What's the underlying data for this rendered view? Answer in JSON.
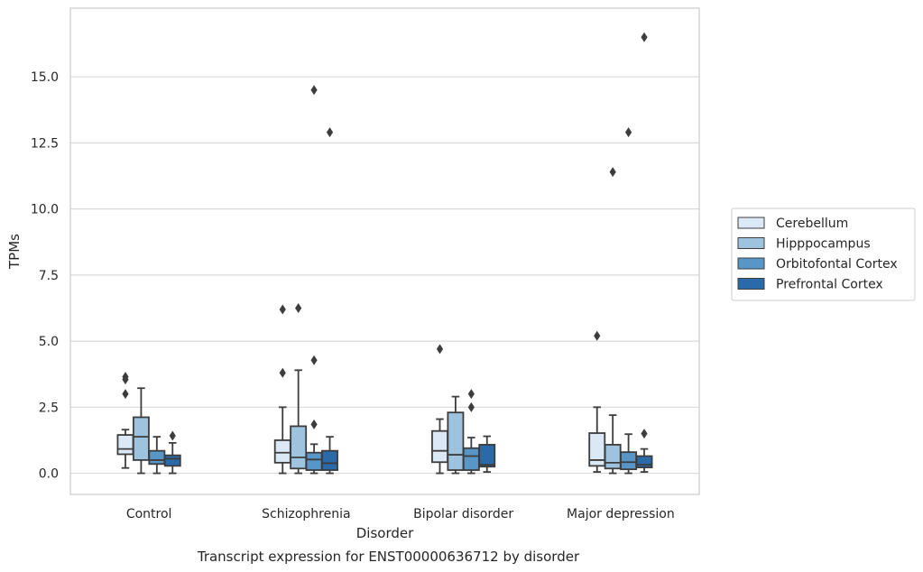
{
  "chart_data": {
    "type": "boxplot",
    "caption": "Transcript expression for ENST00000636712 by disorder",
    "xlabel": "Disorder",
    "ylabel": "TPMs",
    "ylim": [
      -0.8,
      17.6
    ],
    "yticks": [
      0.0,
      2.5,
      5.0,
      7.5,
      10.0,
      12.5,
      15.0
    ],
    "ytick_labels": [
      "0.0",
      "2.5",
      "5.0",
      "7.5",
      "10.0",
      "12.5",
      "15.0"
    ],
    "grid": "horizontal",
    "legend_position": "right",
    "categories": [
      "Control",
      "Schizophrenia",
      "Bipolar disorder",
      "Major depression"
    ],
    "series": [
      {
        "name": "Cerebellum",
        "color": "#dbe9f6",
        "boxes": [
          {
            "whislo": 0.2,
            "q1": 0.72,
            "med": 0.92,
            "q3": 1.45,
            "whishi": 1.65,
            "fliers": [
              3.0,
              3.55,
              3.65
            ]
          },
          {
            "whislo": 0.0,
            "q1": 0.4,
            "med": 0.78,
            "q3": 1.25,
            "whishi": 2.5,
            "fliers": [
              3.8,
              6.2
            ]
          },
          {
            "whislo": 0.0,
            "q1": 0.42,
            "med": 0.85,
            "q3": 1.6,
            "whishi": 2.05,
            "fliers": [
              4.7
            ]
          },
          {
            "whislo": 0.05,
            "q1": 0.28,
            "med": 0.5,
            "q3": 1.52,
            "whishi": 2.5,
            "fliers": [
              5.2
            ]
          }
        ]
      },
      {
        "name": "Hipppocampus",
        "color": "#9dc3de",
        "boxes": [
          {
            "whislo": 0.0,
            "q1": 0.5,
            "med": 1.38,
            "q3": 2.12,
            "whishi": 3.22,
            "fliers": []
          },
          {
            "whislo": 0.0,
            "q1": 0.18,
            "med": 0.6,
            "q3": 1.78,
            "whishi": 3.9,
            "fliers": [
              6.25
            ]
          },
          {
            "whislo": 0.0,
            "q1": 0.12,
            "med": 0.7,
            "q3": 2.3,
            "whishi": 2.9,
            "fliers": []
          },
          {
            "whislo": 0.0,
            "q1": 0.18,
            "med": 0.4,
            "q3": 1.08,
            "whishi": 2.2,
            "fliers": [
              11.4
            ]
          }
        ]
      },
      {
        "name": "Orbitofontal Cortex",
        "color": "#5796c6",
        "boxes": [
          {
            "whislo": 0.0,
            "q1": 0.35,
            "med": 0.5,
            "q3": 0.85,
            "whishi": 1.38,
            "fliers": []
          },
          {
            "whislo": 0.0,
            "q1": 0.12,
            "med": 0.52,
            "q3": 0.78,
            "whishi": 1.1,
            "fliers": [
              1.85,
              4.28,
              14.5
            ]
          },
          {
            "whislo": 0.0,
            "q1": 0.12,
            "med": 0.65,
            "q3": 0.95,
            "whishi": 1.35,
            "fliers": [
              2.5,
              3.0
            ]
          },
          {
            "whislo": 0.0,
            "q1": 0.15,
            "med": 0.42,
            "q3": 0.8,
            "whishi": 1.48,
            "fliers": [
              12.9
            ]
          }
        ]
      },
      {
        "name": "Prefrontal Cortex",
        "color": "#2b6aa9",
        "boxes": [
          {
            "whislo": 0.0,
            "q1": 0.28,
            "med": 0.55,
            "q3": 0.68,
            "whishi": 1.15,
            "fliers": [
              1.42
            ]
          },
          {
            "whislo": 0.0,
            "q1": 0.12,
            "med": 0.38,
            "q3": 0.85,
            "whishi": 1.38,
            "fliers": [
              12.9
            ]
          },
          {
            "whislo": 0.05,
            "q1": 0.25,
            "med": 0.32,
            "q3": 1.08,
            "whishi": 1.4,
            "fliers": []
          },
          {
            "whislo": 0.05,
            "q1": 0.22,
            "med": 0.32,
            "q3": 0.65,
            "whishi": 0.92,
            "fliers": [
              1.5,
              16.5
            ]
          }
        ]
      }
    ]
  }
}
